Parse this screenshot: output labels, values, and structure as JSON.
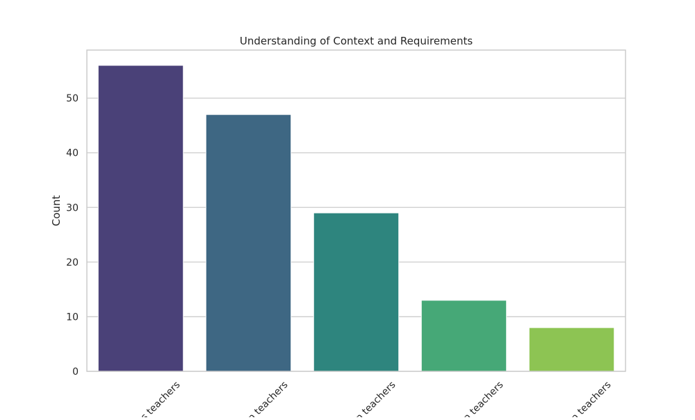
{
  "chart_data": {
    "type": "bar",
    "title": "Understanding of Context and Requirements",
    "xlabel": "",
    "ylabel": "Count",
    "categories": [
      "s teachers",
      "n teachers",
      "n teachers",
      "n teachers",
      "n teachers"
    ],
    "values": [
      56,
      47,
      29,
      13,
      8
    ],
    "colors": [
      "#4a4178",
      "#3e6783",
      "#2e857e",
      "#46a877",
      "#8dc453"
    ],
    "ylim": [
      0,
      58.8
    ],
    "yticks": [
      0,
      10,
      20,
      30,
      40,
      50
    ],
    "grid": true,
    "legend": "none"
  }
}
